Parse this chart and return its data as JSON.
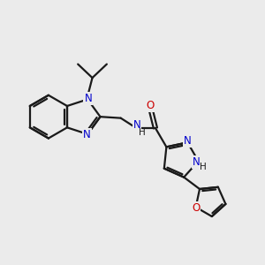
{
  "background_color": "#ebebeb",
  "bond_color": "#1a1a1a",
  "N_color": "#0000cc",
  "O_color": "#cc0000",
  "line_width": 1.6,
  "figsize": [
    3.0,
    3.0
  ],
  "dpi": 100,
  "xlim": [
    0,
    10
  ],
  "ylim": [
    0,
    10
  ]
}
